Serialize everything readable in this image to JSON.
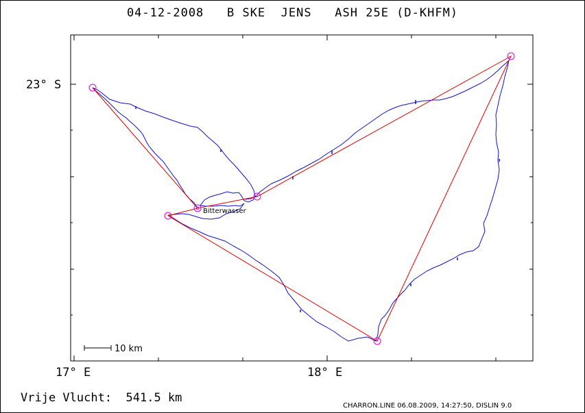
{
  "title": "04-12-2008   B SKE  JENS   ASH 25E (D-KHFM)",
  "lat_label": "23° S",
  "lon_labels": [
    "17° E",
    "18° E"
  ],
  "scale_label": "10 km",
  "turnpoint_label": "Bitterwasser",
  "distance_text": "Vrije Vlucht:  541.5 km",
  "footer_text": "CHARRON.LINE 06.08.2009, 14:27:50, DISLIN 9.0",
  "colors": {
    "track": "#1010d0",
    "task": "#e00000",
    "turnpoint": "#e000e0"
  }
}
